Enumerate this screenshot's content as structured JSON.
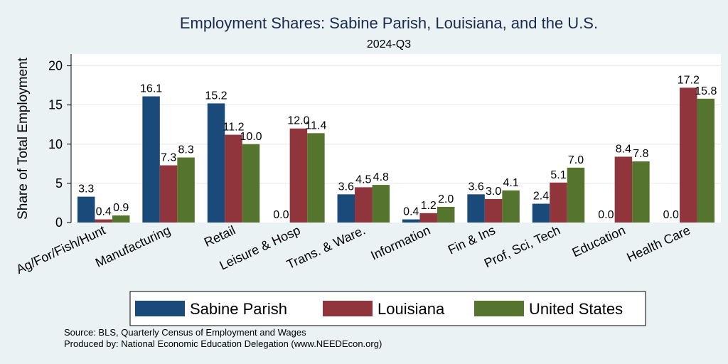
{
  "chart_data": {
    "type": "bar",
    "title": "Employment Shares: Sabine Parish, Louisiana, and the U.S.",
    "subtitle": "2024-Q3",
    "ylabel": "Share of Total Employment",
    "xlabel": "",
    "ylim": [
      0,
      21.5
    ],
    "yticks": [
      0,
      5,
      10,
      15,
      20
    ],
    "grid": true,
    "legend_position": "bottom",
    "categories": [
      "Ag/For/Fish/Hunt",
      "Manufacturing",
      "Retail",
      "Leisure & Hosp",
      "Trans. & Ware.",
      "Information",
      "Fin & Ins",
      "Prof, Sci, Tech",
      "Education",
      "Health Care"
    ],
    "series": [
      {
        "name": "Sabine Parish",
        "color": "#1a4a7a",
        "values": [
          3.3,
          16.1,
          15.2,
          0.0,
          3.6,
          0.4,
          3.6,
          2.4,
          0.0,
          0.0
        ]
      },
      {
        "name": "Louisiana",
        "color": "#90353b",
        "values": [
          0.4,
          7.3,
          11.2,
          12.0,
          4.5,
          1.2,
          3.0,
          5.1,
          8.4,
          17.2
        ]
      },
      {
        "name": "United States",
        "color": "#55752f",
        "values": [
          0.9,
          8.3,
          10.0,
          11.4,
          4.8,
          2.0,
          4.1,
          7.0,
          7.8,
          15.8
        ]
      }
    ]
  },
  "notes": {
    "source": "Source: BLS, Quarterly Census of Employment and Wages",
    "produced": "Produced by: National Economic Education Delegation (www.NEEDEcon.org)"
  }
}
